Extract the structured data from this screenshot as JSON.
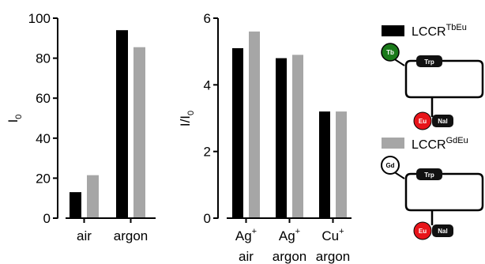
{
  "chart_data": [
    {
      "type": "bar",
      "ylabel": "I",
      "ylabel_sub": "0",
      "ylim": [
        0,
        100
      ],
      "yticks": [
        "0",
        "20",
        "40",
        "60",
        "80",
        "100"
      ],
      "ytick_values": [
        0,
        20,
        40,
        60,
        80,
        100
      ],
      "categories": [
        {
          "line1": "air",
          "sup1": "",
          "line2": ""
        },
        {
          "line1": "argon",
          "sup1": "",
          "line2": ""
        }
      ],
      "series": [
        {
          "name": "LCCR",
          "sup": "TbEu",
          "color": "#000000",
          "values": [
            13,
            94
          ]
        },
        {
          "name": "LCCR",
          "sup": "GdEu",
          "color": "#a6a6a6",
          "values": [
            21.5,
            85.5
          ]
        }
      ]
    },
    {
      "type": "bar",
      "ylabel": "I/I",
      "ylabel_sub": "0",
      "ylim": [
        0,
        6
      ],
      "yticks": [
        "0",
        "2",
        "4",
        "6"
      ],
      "ytick_values": [
        0,
        2,
        4,
        6
      ],
      "categories": [
        {
          "line1": "Ag",
          "sup1": "+",
          "line2": "air"
        },
        {
          "line1": "Ag",
          "sup1": "+",
          "line2": "argon"
        },
        {
          "line1": "Cu",
          "sup1": "+",
          "line2": "argon"
        }
      ],
      "series": [
        {
          "name": "LCCR",
          "sup": "TbEu",
          "color": "#000000",
          "values": [
            5.1,
            4.8,
            3.2
          ]
        },
        {
          "name": "LCCR",
          "sup": "GdEu",
          "color": "#a6a6a6",
          "values": [
            5.6,
            4.9,
            3.2
          ]
        }
      ]
    }
  ],
  "legend": [
    {
      "name": "LCCR",
      "sup": "TbEu",
      "color": "#000000"
    },
    {
      "name": "LCCR",
      "sup": "GdEu",
      "color": "#a6a6a6"
    }
  ],
  "schematics": [
    {
      "ion": "Tb",
      "ion_color": "#1a7a1a",
      "ion_text_color": "#ffffff",
      "trp": "Trp",
      "eu": "Eu",
      "eu_color": "#e8141a",
      "nal": "Nal"
    },
    {
      "ion": "Gd",
      "ion_color": "#ffffff",
      "ion_text_color": "#000000",
      "trp": "Trp",
      "eu": "Eu",
      "eu_color": "#e8141a",
      "nal": "Nal"
    }
  ]
}
